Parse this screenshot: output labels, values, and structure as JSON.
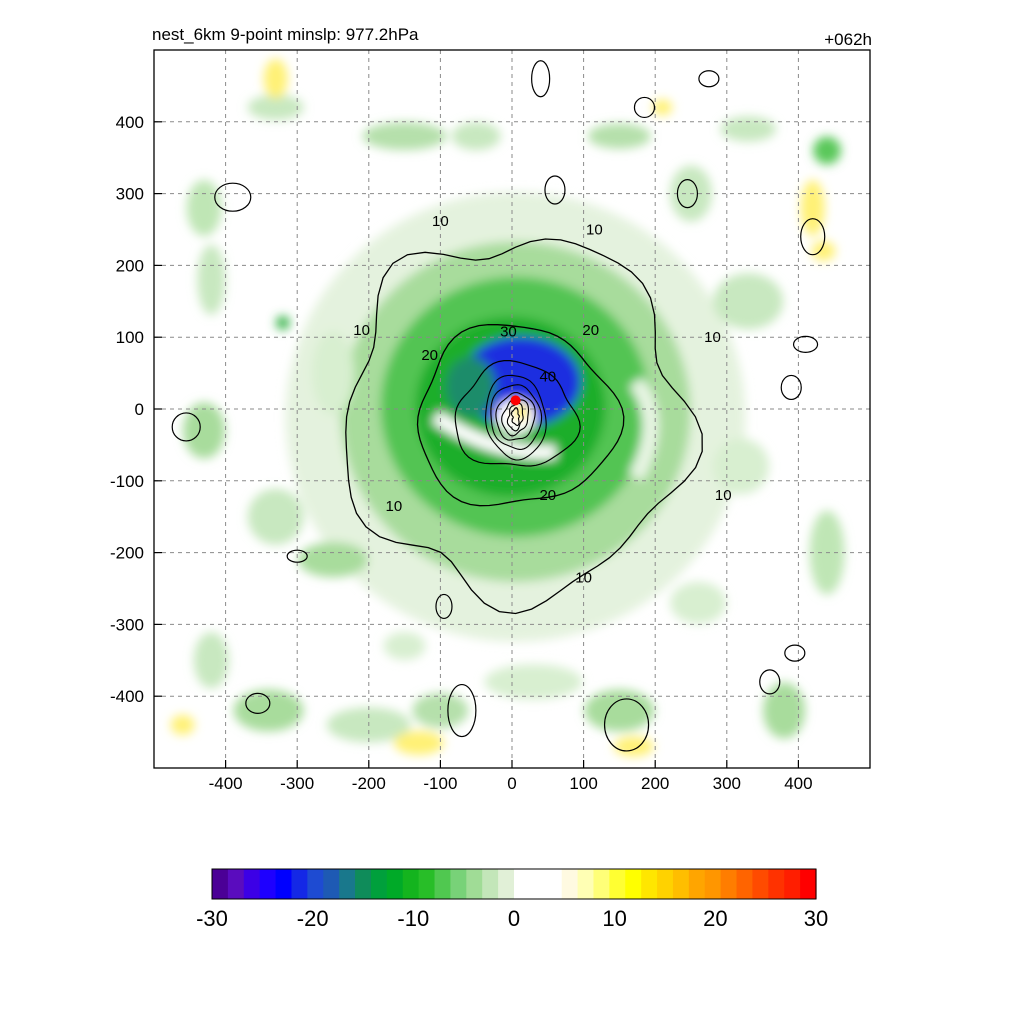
{
  "title_left": "nest_6km  9-point minslp: 977.2hPa",
  "title_right": "+062h",
  "chart_data": {
    "type": "contour",
    "xlim": [
      -500,
      500
    ],
    "ylim": [
      -500,
      500
    ],
    "x_ticks": [
      "-400",
      "-300",
      "-200",
      "-100",
      "0",
      "100",
      "200",
      "300",
      "400"
    ],
    "y_ticks": [
      "400",
      "300",
      "200",
      "100",
      "0",
      "-100",
      "-200",
      "-300",
      "-400"
    ],
    "x_tick_values": [
      -400,
      -300,
      -200,
      -100,
      0,
      100,
      200,
      300,
      400
    ],
    "y_tick_values": [
      400,
      300,
      200,
      100,
      0,
      -100,
      -200,
      -300,
      -400
    ],
    "grid": true,
    "grid_style": "dashed",
    "contour_levels": [
      10,
      20,
      30,
      40
    ],
    "contour_labels": [
      {
        "text": "10",
        "x": -100,
        "y": 262
      },
      {
        "text": "10",
        "x": 115,
        "y": 250
      },
      {
        "text": "10",
        "x": 280,
        "y": 100
      },
      {
        "text": "10",
        "x": -210,
        "y": 110
      },
      {
        "text": "10",
        "x": -165,
        "y": -135
      },
      {
        "text": "10",
        "x": 295,
        "y": -120
      },
      {
        "text": "10",
        "x": 100,
        "y": -235
      },
      {
        "text": "20",
        "x": -115,
        "y": 75
      },
      {
        "text": "20",
        "x": 110,
        "y": 110
      },
      {
        "text": "20",
        "x": 50,
        "y": -120
      },
      {
        "text": "30",
        "x": -5,
        "y": 108
      },
      {
        "text": "40",
        "x": 50,
        "y": 45
      }
    ],
    "center_marker": {
      "x": 5,
      "y": 12,
      "color": "#ff0000"
    },
    "colorbar": {
      "min": -30,
      "max": 30,
      "ticks": [
        "-30",
        "-20",
        "-10",
        "0",
        "10",
        "20",
        "30"
      ],
      "colors": [
        "#4b0096",
        "#5a0cbe",
        "#3c00e6",
        "#1e00ff",
        "#0000ff",
        "#1428e6",
        "#1e4bd2",
        "#1e5ab4",
        "#19788c",
        "#0f8c5a",
        "#00a03c",
        "#00aa28",
        "#14b41e",
        "#28be28",
        "#50c850",
        "#78d278",
        "#a0dc96",
        "#c3e6b9",
        "#e1f0d7",
        "#ffffff",
        "#ffffff",
        "#ffffff",
        "#fffae1",
        "#ffffb4",
        "#ffff78",
        "#ffff32",
        "#ffff00",
        "#ffe600",
        "#ffd200",
        "#ffbe00",
        "#ffa500",
        "#ff9600",
        "#ff7d00",
        "#ff6400",
        "#ff4b00",
        "#ff3200",
        "#ff1e00",
        "#ff0000"
      ]
    }
  }
}
